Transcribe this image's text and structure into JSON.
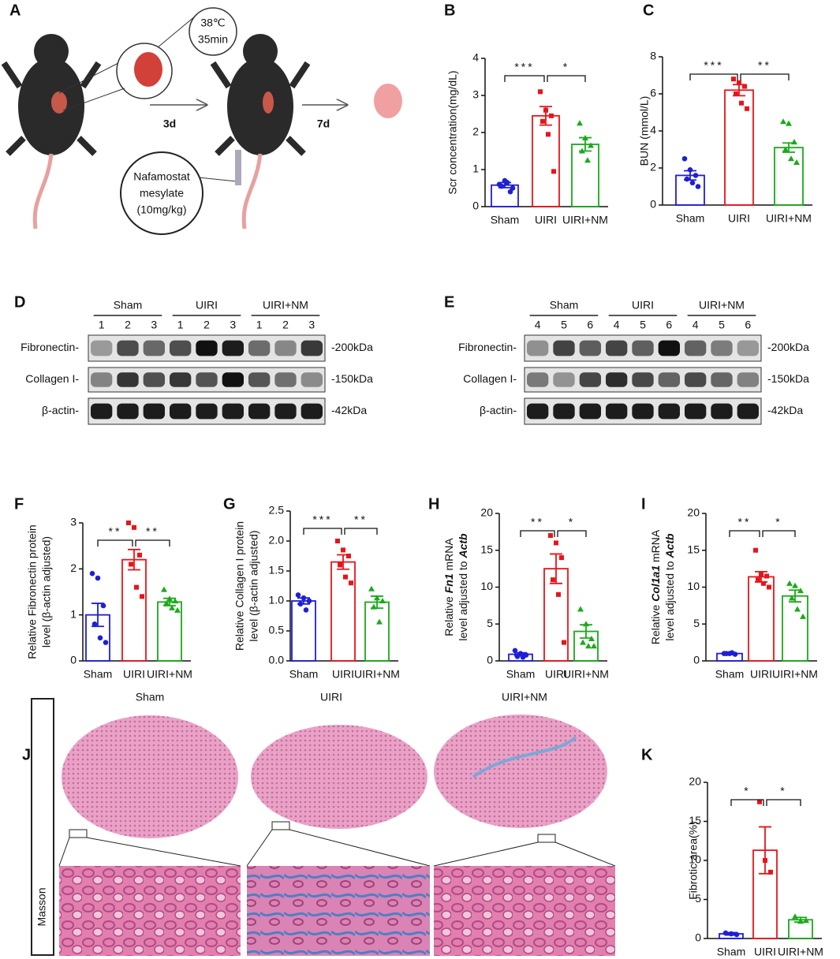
{
  "panel_labels": [
    "A",
    "B",
    "C",
    "D",
    "E",
    "F",
    "G",
    "H",
    "I",
    "J",
    "K"
  ],
  "schematic": {
    "temp": "38℃",
    "time": "35min",
    "day1": "3d",
    "day2": "7d",
    "drug": [
      "Nafamostat",
      "mesylate",
      "(10mg/kg)"
    ]
  },
  "blots": [
    {
      "groups": [
        "Sham",
        "UIRI",
        "UIRI+NM"
      ],
      "lanes": [
        "1",
        "2",
        "3",
        "1",
        "2",
        "3",
        "1",
        "2",
        "3"
      ],
      "rows": [
        "Fibronectin-",
        "Collagen I-",
        "β-actin-"
      ],
      "sizes": [
        "-200kDa",
        "-150kDa",
        "-42kDa"
      ]
    },
    {
      "groups": [
        "Sham",
        "UIRI",
        "UIRI+NM"
      ],
      "lanes": [
        "4",
        "5",
        "6",
        "4",
        "5",
        "6",
        "4",
        "5",
        "6"
      ],
      "rows": [
        "Fibronectin-",
        "Collagen I-",
        "β-actin-"
      ],
      "sizes": [
        "-200kDa",
        "-150kDa",
        "-42kDa"
      ]
    }
  ],
  "histology": {
    "groups": [
      "Sham",
      "UIRI",
      "UIRI+NM"
    ],
    "stain": "Masson"
  },
  "chart_data": [
    {
      "type": "bar",
      "ylabel": [
        "Scr concentration(mg/dL)"
      ],
      "categories": [
        "Sham",
        "UIRI",
        "UIRI+NM"
      ],
      "colors": [
        "#1f1fd6",
        "#e8141a",
        "#1aaa1a"
      ],
      "markers": [
        "circle",
        "square",
        "triangle"
      ],
      "values": [
        0.58,
        2.45,
        1.68
      ],
      "errors": [
        0.07,
        0.25,
        0.18
      ],
      "points": [
        [
          0.6,
          0.7,
          0.4,
          0.55,
          0.65,
          0.5
        ],
        [
          3.1,
          2.6,
          2.45,
          2.3,
          1.95,
          0.95
        ],
        [
          2.25,
          1.85,
          1.65,
          1.5,
          1.25
        ]
      ],
      "ylim": [
        0,
        4
      ],
      "yticks": [
        0,
        1,
        2,
        3,
        4
      ],
      "significance": [
        {
          "from": 0,
          "to": 1,
          "label": "***"
        },
        {
          "from": 1,
          "to": 2,
          "label": "*"
        }
      ]
    },
    {
      "type": "bar",
      "ylabel": [
        "BUN (mmol/L)"
      ],
      "categories": [
        "Sham",
        "UIRI",
        "UIRI+NM"
      ],
      "colors": [
        "#1f1fd6",
        "#e8141a",
        "#1aaa1a"
      ],
      "markers": [
        "circle",
        "square",
        "triangle"
      ],
      "values": [
        1.6,
        6.2,
        3.1
      ],
      "errors": [
        0.25,
        0.3,
        0.25
      ],
      "points": [
        [
          2.5,
          1.9,
          1.6,
          1.4,
          1.2,
          1.0
        ],
        [
          6.8,
          6.6,
          6.4,
          6.0,
          5.5,
          5.2
        ],
        [
          4.5,
          4.4,
          3.4,
          3.0,
          2.5,
          2.3
        ]
      ],
      "ylim": [
        0,
        8
      ],
      "yticks": [
        0,
        2,
        4,
        6,
        8
      ],
      "significance": [
        {
          "from": 0,
          "to": 1,
          "label": "***"
        },
        {
          "from": 1,
          "to": 2,
          "label": "**"
        }
      ]
    },
    {
      "type": "bar",
      "ylabel": [
        "Relative Fibronectin protein",
        "level (β-actin adjusted)"
      ],
      "categories": [
        "Sham",
        "UIRI",
        "UIRI+NM"
      ],
      "colors": [
        "#1f1fd6",
        "#e8141a",
        "#1aaa1a"
      ],
      "markers": [
        "circle",
        "square",
        "triangle"
      ],
      "values": [
        1.0,
        2.2,
        1.28
      ],
      "errors": [
        0.25,
        0.22,
        0.08
      ],
      "points": [
        [
          1.9,
          1.8,
          1.2,
          0.8,
          0.5,
          0.4
        ],
        [
          3.0,
          2.9,
          2.3,
          2.1,
          1.6,
          1.4
        ],
        [
          1.55,
          1.35,
          1.3,
          1.25,
          1.15,
          1.1
        ]
      ],
      "ylim": [
        0,
        3
      ],
      "yticks": [
        0,
        1,
        2,
        3
      ],
      "significance": [
        {
          "from": 0,
          "to": 1,
          "label": "**"
        },
        {
          "from": 1,
          "to": 2,
          "label": "**"
        }
      ]
    },
    {
      "type": "bar",
      "ylabel": [
        "Relative Collagen I protein",
        "level (β-actin adjusted)"
      ],
      "categories": [
        "Sham",
        "UIRI",
        "UIRI+NM"
      ],
      "colors": [
        "#1f1fd6",
        "#e8141a",
        "#1aaa1a"
      ],
      "markers": [
        "circle",
        "square",
        "triangle"
      ],
      "values": [
        1.0,
        1.65,
        0.98
      ],
      "errors": [
        0.05,
        0.12,
        0.1
      ],
      "points": [
        [
          1.1,
          1.05,
          1.0,
          0.95,
          0.85
        ],
        [
          2.0,
          1.85,
          1.75,
          1.6,
          1.4,
          1.3
        ],
        [
          1.2,
          1.05,
          1.0,
          0.9,
          0.65
        ]
      ],
      "ylim": [
        0,
        2.5
      ],
      "yticks": [
        {
          "value": 0,
          "label": "0.0"
        },
        0.5,
        {
          "value": 1,
          "label": "1.0"
        },
        1.5,
        {
          "value": 2,
          "label": "2.0"
        },
        2.5
      ],
      "significance": [
        {
          "from": 0,
          "to": 1,
          "label": "***"
        },
        {
          "from": 1,
          "to": 2,
          "label": "**"
        }
      ]
    },
    {
      "type": "bar",
      "ylabel": [
        [
          {
            "text": "Relative "
          },
          {
            "text": "Fn1",
            "italic": true
          },
          {
            "text": " mRNA"
          }
        ],
        [
          {
            "text": "level adjusted to "
          },
          {
            "text": "Actb",
            "italic": true
          }
        ]
      ],
      "categories": [
        "Sham",
        "UIRI",
        "UIRI+NM"
      ],
      "colors": [
        "#1f1fd6",
        "#e8141a",
        "#1aaa1a"
      ],
      "markers": [
        "circle",
        "square",
        "triangle"
      ],
      "values": [
        0.9,
        12.5,
        4.0
      ],
      "errors": [
        0.2,
        2.0,
        0.9
      ],
      "points": [
        [
          1.4,
          1.0,
          0.8,
          0.6,
          0.5
        ],
        [
          17,
          16,
          14,
          11,
          9,
          2.5
        ],
        [
          7,
          5,
          3,
          2.5,
          2,
          2
        ]
      ],
      "ylim": [
        0,
        20
      ],
      "yticks": [
        0,
        5,
        10,
        15,
        20
      ],
      "significance": [
        {
          "from": 0,
          "to": 1,
          "label": "**"
        },
        {
          "from": 1,
          "to": 2,
          "label": "*"
        }
      ]
    },
    {
      "type": "bar",
      "ylabel": [
        [
          {
            "text": "Relative "
          },
          {
            "text": "Col1a1",
            "italic": true
          },
          {
            "text": " mRNA"
          }
        ],
        [
          {
            "text": "level adjusted to "
          },
          {
            "text": "Actb",
            "italic": true
          }
        ]
      ],
      "categories": [
        "Sham",
        "UIRI",
        "UIRI+NM"
      ],
      "colors": [
        "#1f1fd6",
        "#e8141a",
        "#1aaa1a"
      ],
      "markers": [
        "circle",
        "square",
        "triangle"
      ],
      "values": [
        1.0,
        11.4,
        8.8
      ],
      "errors": [
        0.05,
        0.7,
        0.8
      ],
      "points": [
        [
          1.0,
          1.0,
          0.9,
          1.0,
          1.1
        ],
        [
          15,
          11.8,
          11.5,
          11,
          10.5,
          10
        ],
        [
          10.5,
          10.2,
          9.5,
          8.5,
          7,
          6
        ]
      ],
      "ylim": [
        0,
        20
      ],
      "yticks": [
        0,
        5,
        10,
        15,
        20
      ],
      "significance": [
        {
          "from": 0,
          "to": 1,
          "label": "**"
        },
        {
          "from": 1,
          "to": 2,
          "label": "*"
        }
      ]
    },
    {
      "type": "bar",
      "ylabel": [
        "Fibrotic area(%)"
      ],
      "categories": [
        "Sham",
        "UIRI",
        "UIRI+NM"
      ],
      "colors": [
        "#1f1fd6",
        "#e8141a",
        "#1aaa1a"
      ],
      "markers": [
        "circle",
        "square",
        "triangle"
      ],
      "values": [
        0.6,
        11.3,
        2.4
      ],
      "errors": [
        0.15,
        3.0,
        0.3
      ],
      "points": [
        [
          0.7,
          0.6,
          0.5
        ],
        [
          17.5,
          10,
          8.5
        ],
        [
          2.8,
          2.2,
          2.3
        ]
      ],
      "ylim": [
        0,
        20
      ],
      "yticks": [
        0,
        5,
        10,
        15,
        20
      ],
      "significance": [
        {
          "from": 0,
          "to": 1,
          "label": "*"
        },
        {
          "from": 1,
          "to": 2,
          "label": "*"
        }
      ]
    }
  ]
}
